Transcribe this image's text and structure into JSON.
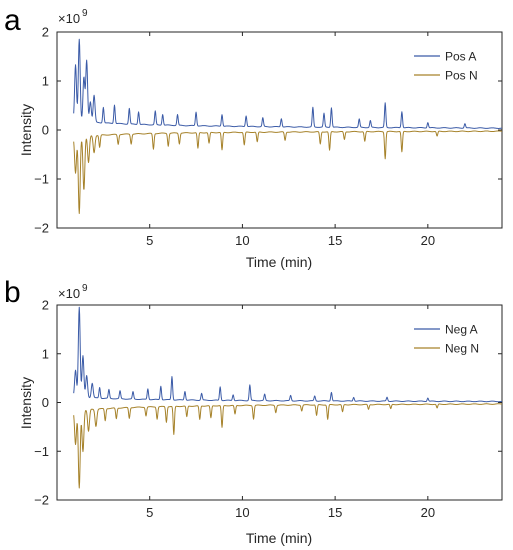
{
  "figure": {
    "panels": [
      "a",
      "b"
    ]
  },
  "chart_data": [
    {
      "panel": "a",
      "type": "line",
      "xlabel": "Time (min)",
      "ylabel": "Intensity",
      "y_multiplier": "×10",
      "y_exponent": "9",
      "xlim": [
        0,
        24
      ],
      "ylim": [
        -2,
        2
      ],
      "xticks": [
        5,
        10,
        15,
        20
      ],
      "yticks": [
        -2,
        -1,
        0,
        1,
        2
      ],
      "legend_position": "top-right",
      "series": [
        {
          "name": "Pos A",
          "color": "#3b5ba7",
          "baseline": 0.1,
          "decay": 0.08,
          "peaks": [
            [
              1.0,
              1.15
            ],
            [
              1.2,
              1.68
            ],
            [
              1.45,
              0.9
            ],
            [
              1.6,
              1.25
            ],
            [
              1.8,
              0.42
            ],
            [
              2.0,
              0.55
            ],
            [
              2.5,
              0.32
            ],
            [
              3.1,
              0.38
            ],
            [
              3.9,
              0.32
            ],
            [
              4.4,
              0.26
            ],
            [
              5.3,
              0.28
            ],
            [
              5.7,
              0.22
            ],
            [
              6.5,
              0.22
            ],
            [
              7.5,
              0.28
            ],
            [
              8.9,
              0.24
            ],
            [
              10.2,
              0.22
            ],
            [
              11.1,
              0.18
            ],
            [
              12.1,
              0.17
            ],
            [
              13.8,
              0.4
            ],
            [
              14.4,
              0.28
            ],
            [
              14.8,
              0.4
            ],
            [
              16.3,
              0.17
            ],
            [
              16.9,
              0.14
            ],
            [
              17.7,
              0.5
            ],
            [
              18.6,
              0.33
            ],
            [
              20.0,
              0.11
            ],
            [
              22.0,
              0.09
            ]
          ]
        },
        {
          "name": "Pos N",
          "color": "#a6822a",
          "baseline": -0.06,
          "decay": -0.07,
          "peaks": [
            [
              1.0,
              -0.75
            ],
            [
              1.2,
              -1.58
            ],
            [
              1.45,
              -1.1
            ],
            [
              1.7,
              -0.55
            ],
            [
              2.0,
              -0.35
            ],
            [
              2.3,
              -0.25
            ],
            [
              3.3,
              -0.2
            ],
            [
              4.0,
              -0.2
            ],
            [
              5.2,
              -0.32
            ],
            [
              6.0,
              -0.26
            ],
            [
              6.6,
              -0.22
            ],
            [
              7.6,
              -0.32
            ],
            [
              8.2,
              -0.22
            ],
            [
              8.9,
              -0.36
            ],
            [
              10.1,
              -0.26
            ],
            [
              10.8,
              -0.2
            ],
            [
              12.3,
              -0.17
            ],
            [
              14.2,
              -0.25
            ],
            [
              14.7,
              -0.38
            ],
            [
              15.5,
              -0.16
            ],
            [
              16.6,
              -0.2
            ],
            [
              17.7,
              -0.55
            ],
            [
              18.6,
              -0.42
            ],
            [
              20.5,
              -0.1
            ]
          ]
        }
      ]
    },
    {
      "panel": "b",
      "type": "line",
      "xlabel": "Time (min)",
      "ylabel": "Intensity",
      "y_multiplier": "×10",
      "y_exponent": "9",
      "xlim": [
        0,
        24
      ],
      "ylim": [
        -2,
        2
      ],
      "xticks": [
        5,
        10,
        15,
        20
      ],
      "yticks": [
        -2,
        -1,
        0,
        1,
        2
      ],
      "legend_position": "top-right",
      "series": [
        {
          "name": "Neg A",
          "color": "#3b5ba7",
          "baseline": 0.05,
          "decay": 0.06,
          "peaks": [
            [
              1.0,
              0.55
            ],
            [
              1.2,
              1.85
            ],
            [
              1.4,
              0.85
            ],
            [
              1.6,
              0.45
            ],
            [
              1.9,
              0.3
            ],
            [
              2.3,
              0.22
            ],
            [
              2.8,
              0.18
            ],
            [
              3.4,
              0.16
            ],
            [
              4.1,
              0.15
            ],
            [
              4.9,
              0.22
            ],
            [
              5.6,
              0.28
            ],
            [
              6.2,
              0.48
            ],
            [
              6.9,
              0.18
            ],
            [
              7.8,
              0.14
            ],
            [
              8.8,
              0.28
            ],
            [
              9.5,
              0.12
            ],
            [
              10.4,
              0.32
            ],
            [
              11.2,
              0.13
            ],
            [
              12.6,
              0.11
            ],
            [
              13.9,
              0.1
            ],
            [
              14.8,
              0.18
            ],
            [
              16.0,
              0.08
            ],
            [
              17.8,
              0.08
            ],
            [
              20.0,
              0.07
            ]
          ]
        },
        {
          "name": "Neg N",
          "color": "#a6822a",
          "baseline": -0.08,
          "decay": -0.08,
          "peaks": [
            [
              1.0,
              -0.7
            ],
            [
              1.2,
              -1.6
            ],
            [
              1.4,
              -0.85
            ],
            [
              1.7,
              -0.45
            ],
            [
              2.1,
              -0.35
            ],
            [
              2.6,
              -0.25
            ],
            [
              3.2,
              -0.22
            ],
            [
              3.9,
              -0.22
            ],
            [
              4.8,
              -0.18
            ],
            [
              5.4,
              -0.25
            ],
            [
              5.9,
              -0.32
            ],
            [
              6.3,
              -0.58
            ],
            [
              7.0,
              -0.22
            ],
            [
              7.7,
              -0.28
            ],
            [
              8.3,
              -0.25
            ],
            [
              8.9,
              -0.45
            ],
            [
              9.6,
              -0.18
            ],
            [
              10.6,
              -0.28
            ],
            [
              11.8,
              -0.15
            ],
            [
              13.2,
              -0.12
            ],
            [
              14.0,
              -0.22
            ],
            [
              14.6,
              -0.3
            ],
            [
              15.4,
              -0.15
            ],
            [
              16.8,
              -0.1
            ],
            [
              18.0,
              -0.09
            ],
            [
              20.5,
              -0.08
            ]
          ]
        }
      ]
    }
  ]
}
